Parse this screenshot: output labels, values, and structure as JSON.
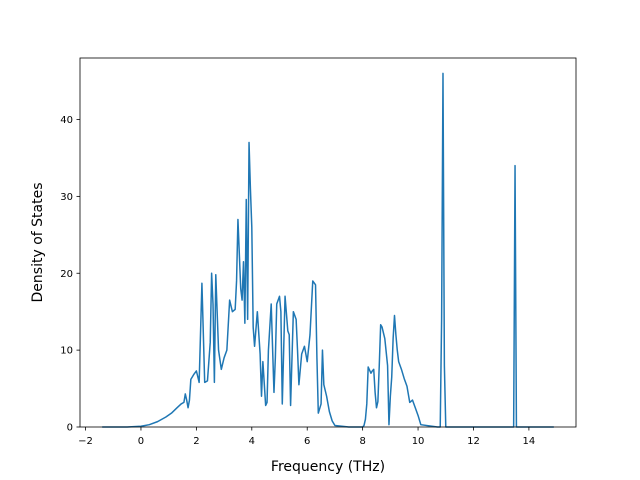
{
  "chart_data": {
    "type": "line",
    "title": "",
    "xlabel": "Frequency (THz)",
    "ylabel": "Density of States",
    "xlim": [
      -2.2,
      15.7
    ],
    "ylim": [
      0,
      48
    ],
    "xticks": [
      -2,
      0,
      2,
      4,
      6,
      8,
      10,
      12,
      14
    ],
    "yticks": [
      0,
      10,
      20,
      30,
      40
    ],
    "grid": false,
    "legend": null,
    "line_color": "#1f77b4",
    "series": [
      {
        "x": [
          -1.4,
          -0.5,
          0.0,
          0.3,
          0.6,
          0.9,
          1.1,
          1.3,
          1.45,
          1.55,
          1.6,
          1.65,
          1.7,
          1.75,
          1.8,
          1.9,
          2.0,
          2.1,
          2.2,
          2.3,
          2.4,
          2.5,
          2.55,
          2.6,
          2.65,
          2.7,
          2.8,
          2.9,
          3.0,
          3.1,
          3.2,
          3.3,
          3.4,
          3.45,
          3.5,
          3.6,
          3.65,
          3.7,
          3.75,
          3.8,
          3.85,
          3.9,
          3.95,
          4.0,
          4.05,
          4.1,
          4.2,
          4.3,
          4.35,
          4.4,
          4.5,
          4.55,
          4.6,
          4.7,
          4.8,
          4.85,
          4.9,
          5.0,
          5.05,
          5.1,
          5.2,
          5.3,
          5.35,
          5.4,
          5.5,
          5.6,
          5.65,
          5.7,
          5.8,
          5.9,
          6.0,
          6.1,
          6.2,
          6.3,
          6.35,
          6.4,
          6.5,
          6.55,
          6.6,
          6.7,
          6.8,
          6.9,
          7.0,
          7.5,
          8.0,
          8.05,
          8.1,
          8.15,
          8.2,
          8.3,
          8.35,
          8.4,
          8.45,
          8.5,
          8.55,
          8.6,
          8.65,
          8.7,
          8.8,
          8.9,
          8.95,
          9.0,
          9.05,
          9.1,
          9.15,
          9.2,
          9.25,
          9.3,
          9.35,
          9.4,
          9.5,
          9.6,
          9.7,
          9.8,
          9.9,
          10.0,
          10.1,
          10.7,
          10.8,
          10.85,
          10.9,
          10.95,
          11.0,
          11.5,
          12.0,
          12.5,
          13.0,
          13.4,
          13.45,
          13.5,
          13.55,
          13.6,
          14.0,
          14.5,
          14.9
        ],
        "y": [
          0,
          0,
          0.1,
          0.3,
          0.7,
          1.3,
          1.8,
          2.5,
          3.0,
          3.2,
          4.3,
          3.5,
          2.5,
          3.5,
          6.2,
          6.8,
          7.3,
          5.8,
          18.7,
          5.8,
          6.0,
          11.0,
          20.0,
          16.0,
          5.8,
          19.8,
          10.0,
          7.5,
          9.0,
          10.0,
          16.5,
          15.0,
          15.3,
          19.0,
          27.0,
          18.0,
          16.5,
          21.5,
          13.5,
          29.6,
          14.0,
          37.0,
          31.0,
          26.0,
          13.0,
          10.5,
          15.0,
          9.5,
          4.0,
          8.5,
          2.8,
          3.2,
          10.0,
          16.0,
          4.5,
          9.0,
          16.0,
          17.0,
          15.0,
          3.0,
          17.0,
          12.5,
          12.0,
          2.8,
          15.0,
          14.0,
          10.0,
          5.5,
          9.5,
          10.5,
          8.5,
          12.0,
          19.0,
          18.5,
          9.0,
          1.8,
          3.0,
          10.0,
          5.5,
          4.0,
          2.0,
          0.8,
          0.2,
          0,
          0,
          0.2,
          1.0,
          3.0,
          7.8,
          7.0,
          7.3,
          7.5,
          4.5,
          2.5,
          3.3,
          8.0,
          13.3,
          13.0,
          11.5,
          8.0,
          0.3,
          4.0,
          6.5,
          11.5,
          14.5,
          12.0,
          10.0,
          8.5,
          8.0,
          7.5,
          6.3,
          5.3,
          3.2,
          3.5,
          2.5,
          1.5,
          0.3,
          0,
          0,
          14.0,
          46.0,
          8.0,
          0,
          0,
          0,
          0,
          0,
          0,
          0,
          34.0,
          0,
          0,
          0,
          0,
          0
        ]
      }
    ]
  }
}
